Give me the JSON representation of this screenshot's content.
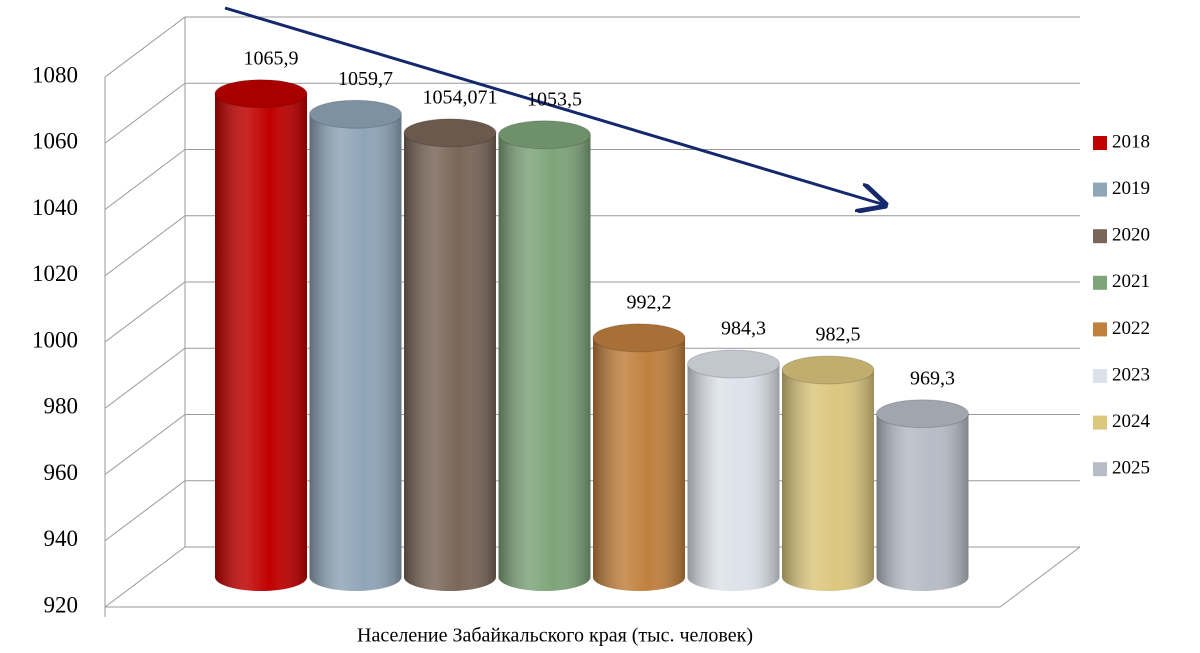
{
  "chart_data": {
    "type": "bar",
    "categories": [
      "Население Забайкальского края (тыс. человек)"
    ],
    "series": [
      {
        "name": "2018",
        "color": "#c00000",
        "values": [
          1065.9
        ],
        "value_labels": [
          "1065,9"
        ]
      },
      {
        "name": "2019",
        "color": "#8fa5b8",
        "values": [
          1059.7
        ],
        "value_labels": [
          "1059,7"
        ]
      },
      {
        "name": "2020",
        "color": "#7a6659",
        "values": [
          1054.071
        ],
        "value_labels": [
          "1054,071"
        ]
      },
      {
        "name": "2021",
        "color": "#7ea47a",
        "values": [
          1053.5
        ],
        "value_labels": [
          "1053,5"
        ]
      },
      {
        "name": "2022",
        "color": "#c0803e",
        "values": [
          992.2
        ],
        "value_labels": [
          "992,2"
        ]
      },
      {
        "name": "2023",
        "color": "#dde2ea",
        "values": [
          984.3
        ],
        "value_labels": [
          "984,3"
        ]
      },
      {
        "name": "2024",
        "color": "#dcc77e",
        "values": [
          982.5
        ],
        "value_labels": [
          "982,5"
        ]
      },
      {
        "name": "2025",
        "color": "#b7bcc6",
        "values": [
          969.3
        ],
        "value_labels": [
          "969,3"
        ]
      }
    ],
    "ylim": [
      920,
      1080
    ],
    "yticks": [
      920,
      940,
      960,
      980,
      1000,
      1020,
      1040,
      1060,
      1080
    ],
    "grid": true,
    "legend": "right"
  }
}
